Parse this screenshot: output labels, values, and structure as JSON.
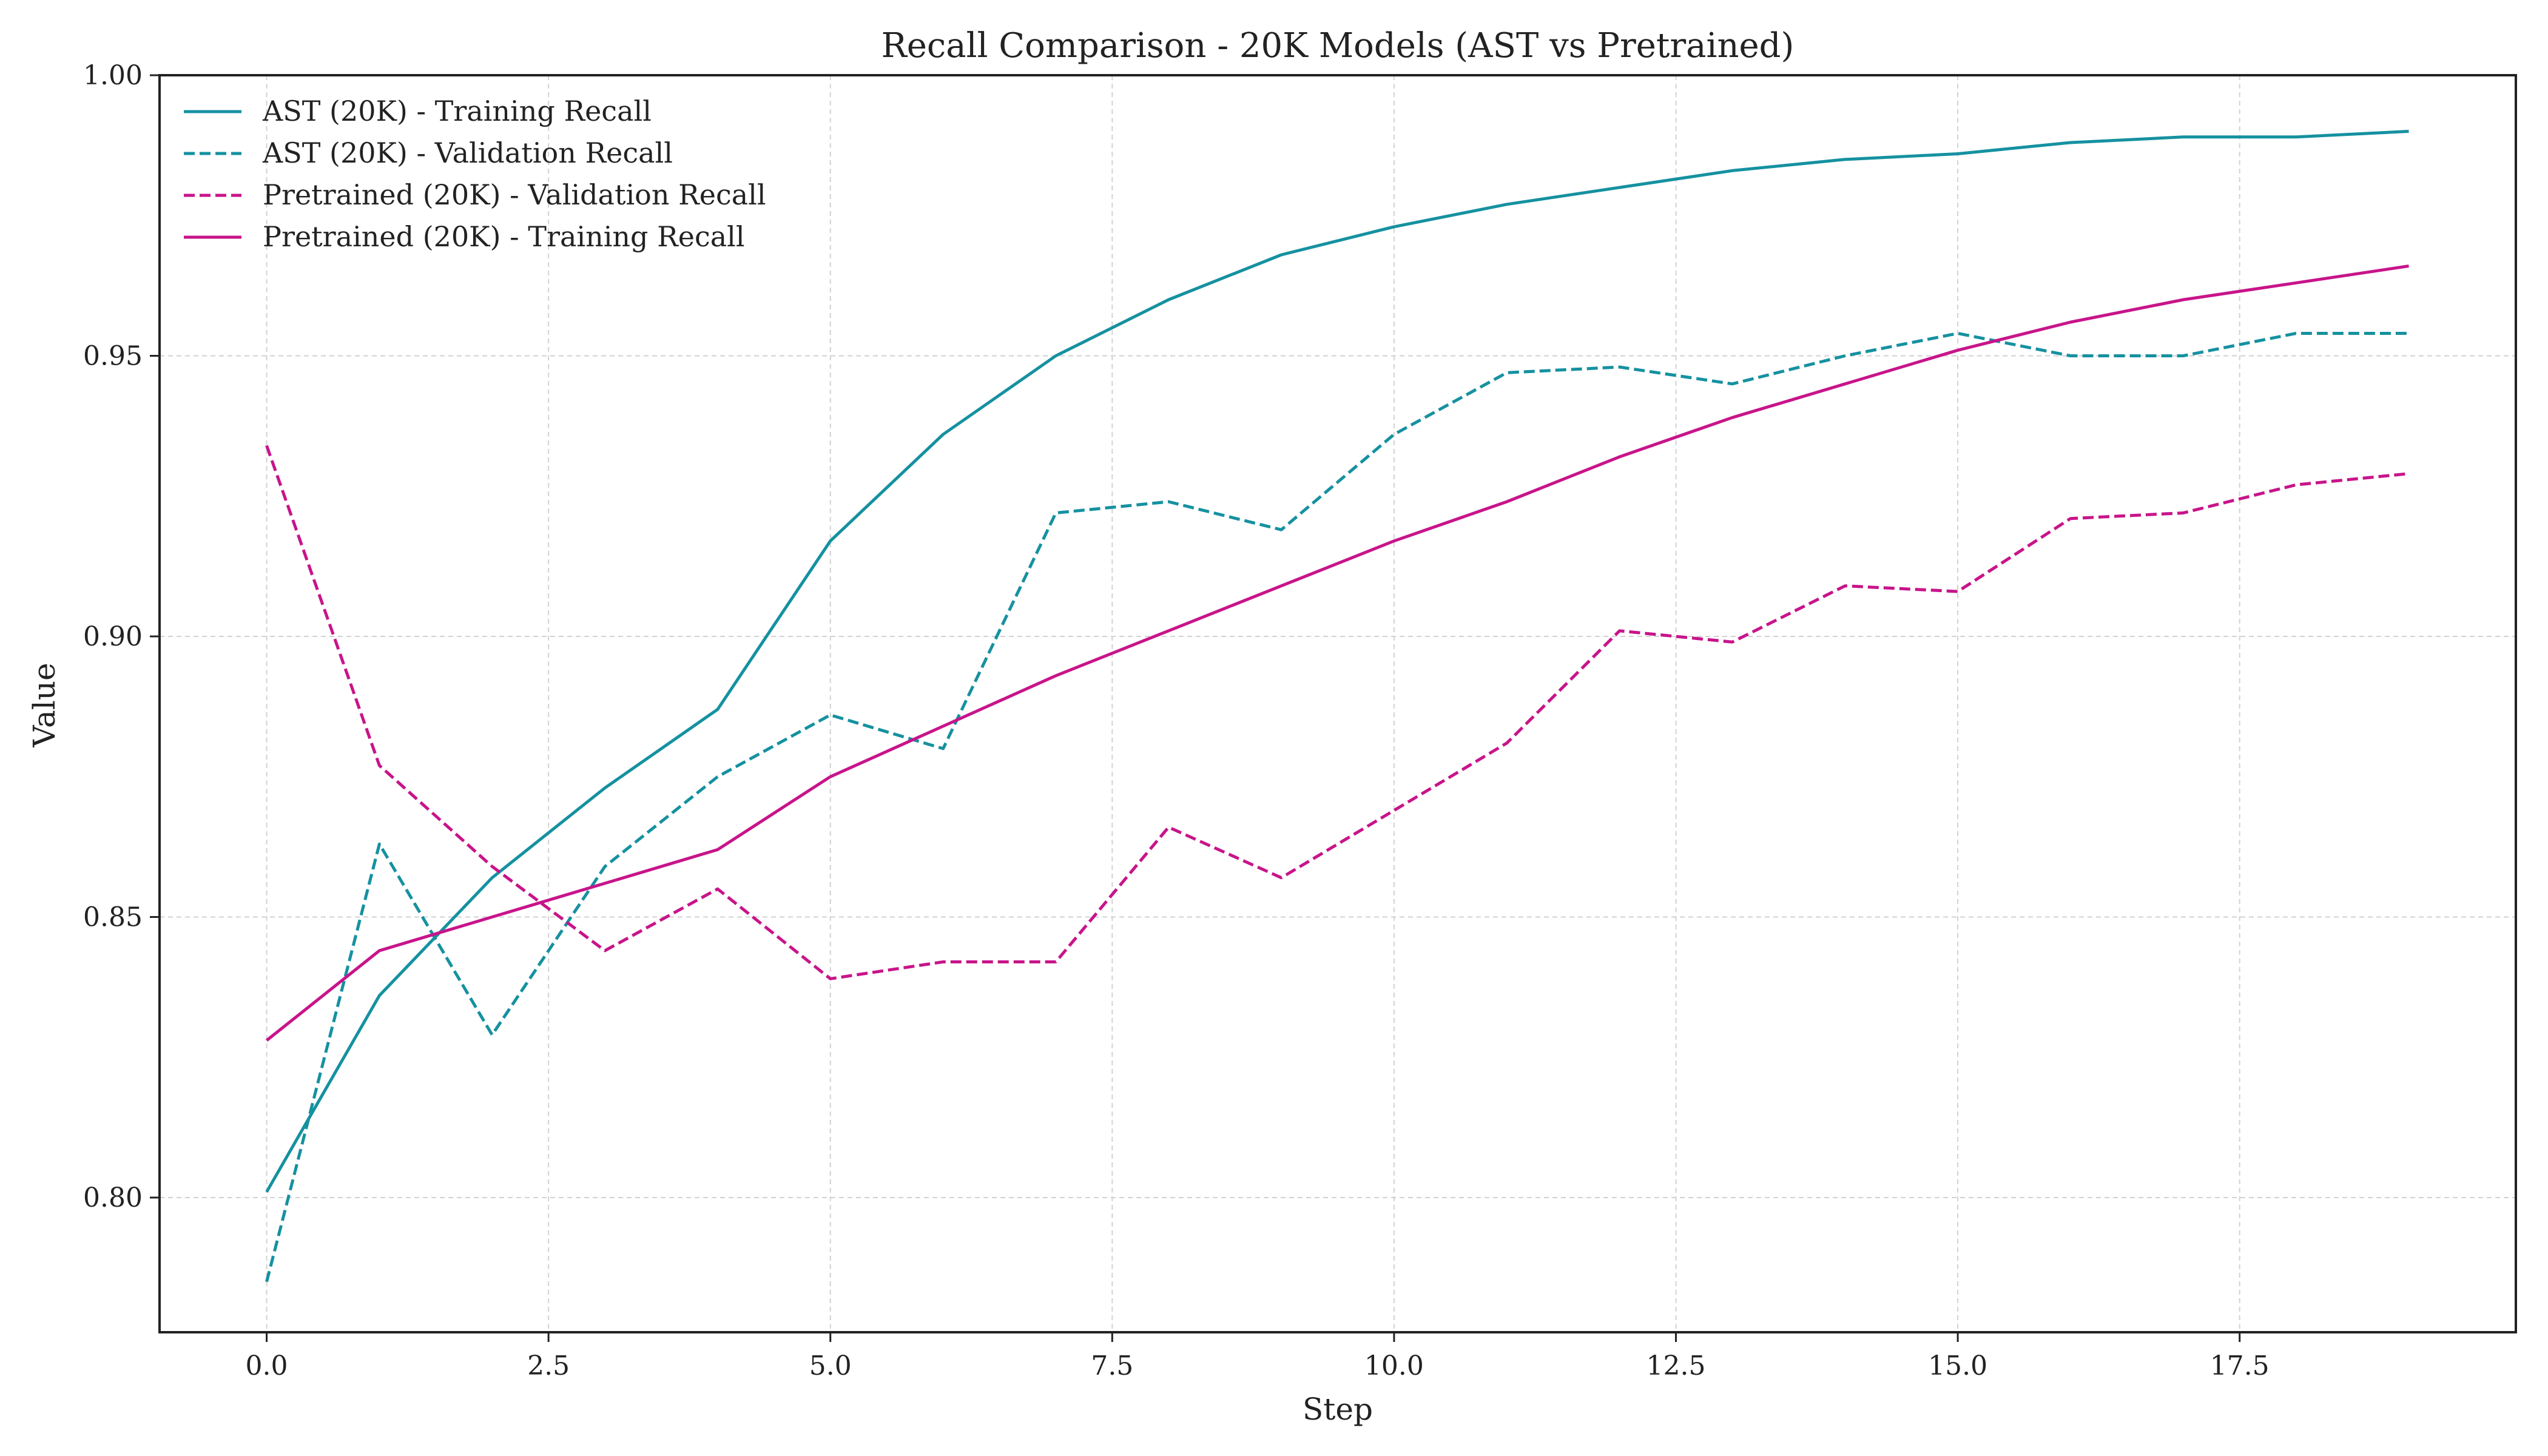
{
  "chart_data": {
    "type": "line",
    "title": "Recall Comparison - 20K Models (AST vs Pretrained)",
    "xlabel": "Step",
    "ylabel": "Value",
    "xlim": [
      -0.95,
      19.95
    ],
    "ylim": [
      0.776,
      1.0
    ],
    "xticks": [
      0.0,
      2.5,
      5.0,
      7.5,
      10.0,
      12.5,
      15.0,
      17.5
    ],
    "xtick_labels": [
      "0.0",
      "2.5",
      "5.0",
      "7.5",
      "10.0",
      "12.5",
      "15.0",
      "17.5"
    ],
    "yticks": [
      0.8,
      0.85,
      0.9,
      0.95,
      1.0
    ],
    "ytick_labels": [
      "0.80",
      "0.85",
      "0.90",
      "0.95",
      "1.00"
    ],
    "grid": true,
    "legend_position": "top-left",
    "x": [
      0,
      1,
      2,
      3,
      4,
      5,
      6,
      7,
      8,
      9,
      10,
      11,
      12,
      13,
      14,
      15,
      16,
      17,
      18,
      19
    ],
    "series": [
      {
        "name": "AST (20K) - Training Recall",
        "color": "#1591a0",
        "dash": "solid",
        "values": [
          0.801,
          0.836,
          0.857,
          0.873,
          0.887,
          0.917,
          0.936,
          0.95,
          0.96,
          0.968,
          0.973,
          0.977,
          0.98,
          0.983,
          0.985,
          0.986,
          0.988,
          0.989,
          0.989,
          0.99
        ]
      },
      {
        "name": "AST (20K) - Validation Recall",
        "color": "#1591a0",
        "dash": "dashed",
        "values": [
          0.785,
          0.863,
          0.829,
          0.859,
          0.875,
          0.886,
          0.88,
          0.922,
          0.924,
          0.919,
          0.936,
          0.947,
          0.948,
          0.945,
          0.95,
          0.954,
          0.95,
          0.95,
          0.954,
          0.954
        ]
      },
      {
        "name": "Pretrained (20K) - Validation Recall",
        "color": "#c8148a",
        "dash": "dashed",
        "values": [
          0.934,
          0.877,
          0.859,
          0.844,
          0.855,
          0.839,
          0.842,
          0.842,
          0.866,
          0.857,
          0.869,
          0.881,
          0.901,
          0.899,
          0.909,
          0.908,
          0.921,
          0.922,
          0.927,
          0.929
        ]
      },
      {
        "name": "Pretrained (20K) - Training Recall",
        "color": "#c8148a",
        "dash": "solid",
        "values": [
          0.828,
          0.844,
          0.85,
          0.856,
          0.862,
          0.875,
          0.884,
          0.893,
          0.901,
          0.909,
          0.917,
          0.924,
          0.932,
          0.939,
          0.945,
          0.951,
          0.956,
          0.96,
          0.963,
          0.966
        ]
      }
    ]
  }
}
